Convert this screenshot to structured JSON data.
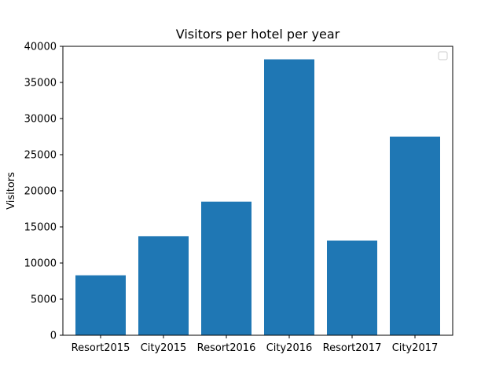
{
  "chart_data": {
    "type": "bar",
    "title": "Visitors per hotel per year",
    "xlabel": "",
    "ylabel": "Visitors",
    "categories": [
      "Resort2015",
      "City2015",
      "Resort2016",
      "City2016",
      "Resort2017",
      "City2017"
    ],
    "values": [
      8300,
      13700,
      18500,
      38200,
      13100,
      27500
    ],
    "ylim": [
      0,
      40000
    ],
    "yticks": [
      0,
      5000,
      10000,
      15000,
      20000,
      25000,
      30000,
      35000,
      40000
    ],
    "grid": false,
    "legend": {
      "placement": "top-right",
      "entries": []
    },
    "colors": {
      "bar": "#1f77b4",
      "axis": "#000000"
    }
  }
}
